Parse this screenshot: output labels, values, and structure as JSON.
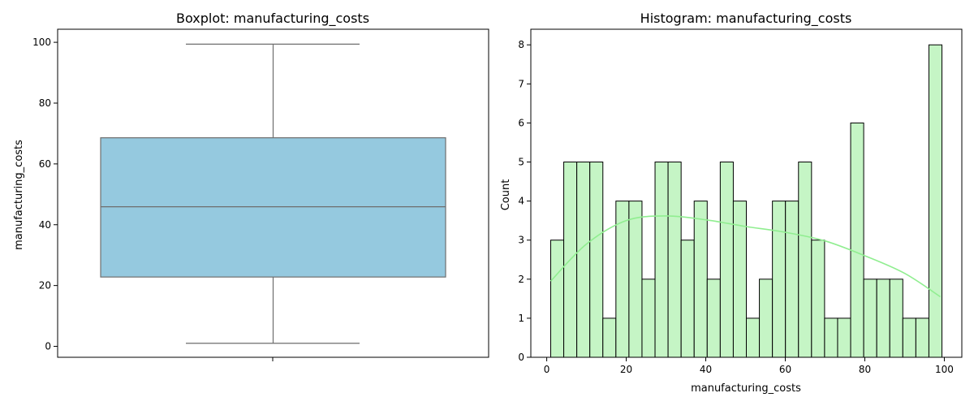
{
  "chart_data": [
    {
      "type": "box",
      "title": "Boxplot: manufacturing_costs",
      "xlabel": "",
      "ylabel": "manufacturing_costs",
      "ylim": [
        -3.6,
        104.3
      ],
      "yticks": [
        0,
        20,
        40,
        60,
        80,
        100
      ],
      "grid": false,
      "stats": {
        "min": 1.0,
        "q1": 22.8,
        "median": 45.9,
        "q3": 68.6,
        "max": 99.4
      },
      "box_color": "#95c9df",
      "edge_color": "#6e6e6e"
    },
    {
      "type": "histogram",
      "title": "Histogram: manufacturing_costs",
      "xlabel": "manufacturing_costs",
      "ylabel": "Count",
      "xlim": [
        -4.0,
        104.4
      ],
      "ylim": [
        0,
        8.4
      ],
      "xticks": [
        0,
        20,
        40,
        60,
        80,
        100
      ],
      "yticks": [
        0,
        1,
        2,
        3,
        4,
        5,
        6,
        7,
        8
      ],
      "grid": false,
      "bin_start": 1.0,
      "bin_width": 3.28,
      "counts": [
        3,
        5,
        5,
        5,
        1,
        4,
        4,
        2,
        5,
        5,
        3,
        4,
        2,
        5,
        4,
        1,
        2,
        4,
        4,
        5,
        3,
        1,
        1,
        6,
        2,
        2,
        2,
        1,
        1,
        8
      ],
      "bar_color": "#c5f5c5",
      "edge_color": "#000000",
      "kde_color": "#90ee90",
      "kde": {
        "x": [
          1,
          10,
          20,
          30,
          40,
          50,
          60,
          70,
          80,
          90,
          99
        ],
        "y": [
          1.95,
          2.9,
          3.5,
          3.62,
          3.52,
          3.35,
          3.2,
          2.98,
          2.6,
          2.15,
          1.55
        ]
      }
    }
  ]
}
